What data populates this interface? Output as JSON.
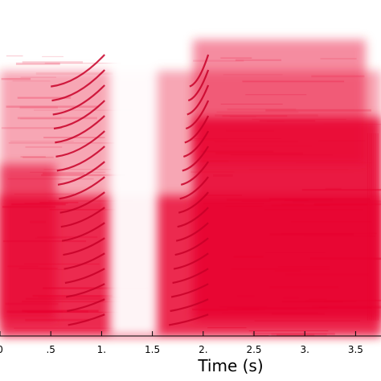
{
  "chart_data": {
    "type": "heatmap",
    "title": "",
    "xlabel": "Time (s)",
    "ylabel": "",
    "x_ticks": [
      0,
      0.5,
      1,
      1.5,
      2,
      2.5,
      3,
      3.5
    ],
    "x_tick_labels": [
      "0",
      ".5",
      "1.",
      "1.5",
      "2.",
      "2.5",
      "3.",
      "3.5"
    ],
    "xlim": [
      0,
      3.75
    ],
    "colormap": "white-to-red",
    "colors": {
      "high": "#e8002e",
      "low": "#ffffff",
      "axis": "#000000"
    },
    "grid": false,
    "legend": "none",
    "voiced_segments": [
      {
        "start_s": 0.5,
        "end_s": 1.05
      },
      {
        "start_s": 1.65,
        "end_s": 2.05
      }
    ],
    "bands": [
      {
        "name": "background",
        "x_start": 0.0,
        "x_end": 3.75,
        "y_from": 0.0,
        "y_to": 0.85,
        "intensity": 0.35
      },
      {
        "name": "low-energy",
        "x_start": 0.0,
        "x_end": 3.75,
        "y_from": 0.0,
        "y_to": 0.45,
        "intensity": 0.75
      },
      {
        "name": "left-noise",
        "x_start": 0.0,
        "x_end": 0.55,
        "y_from": 0.05,
        "y_to": 0.55,
        "intensity": 0.6
      },
      {
        "name": "right-noise",
        "x_start": 1.9,
        "x_end": 3.75,
        "y_from": 0.05,
        "y_to": 0.7,
        "intensity": 0.85
      },
      {
        "name": "right-upper",
        "x_start": 1.9,
        "x_end": 3.6,
        "y_from": 0.55,
        "y_to": 0.95,
        "intensity": 0.45
      }
    ]
  }
}
